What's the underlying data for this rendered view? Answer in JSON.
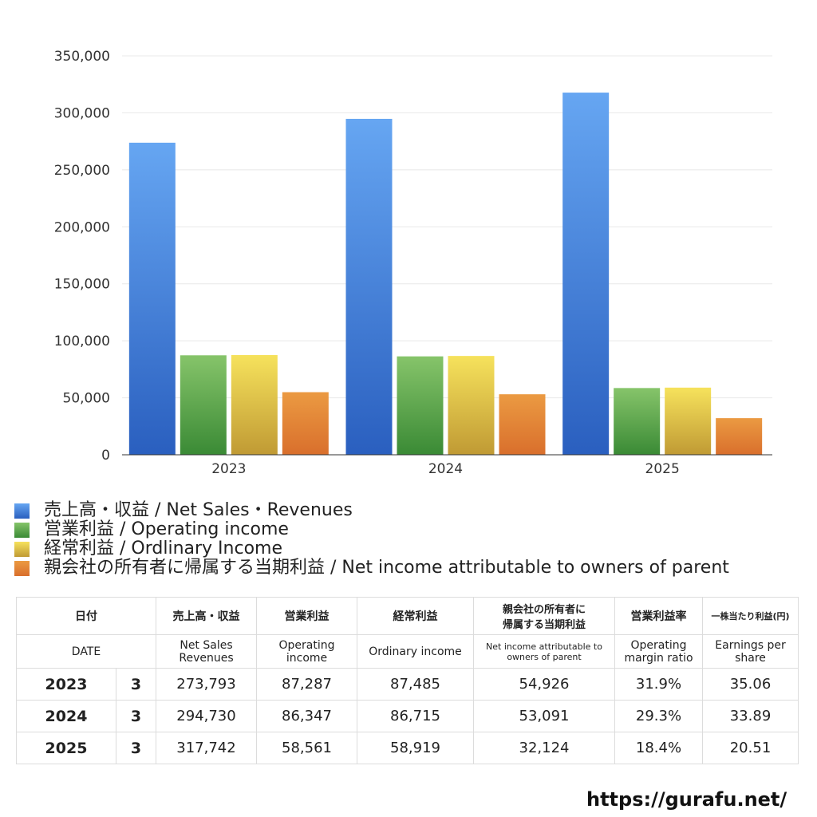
{
  "chart_data": {
    "type": "bar",
    "categories": [
      "2023",
      "2024",
      "2025"
    ],
    "ylim": [
      0,
      350000
    ],
    "yticks": [
      "0",
      "50,000",
      "100,000",
      "150,000",
      "200,000",
      "250,000",
      "300,000",
      "350,000"
    ],
    "grid": true,
    "series": [
      {
        "name": "売上高・収益 / Net Sales・Revenues",
        "values": [
          273793,
          294730,
          317742
        ],
        "color_top": "#66a6f2",
        "color_bottom": "#2a5fbf"
      },
      {
        "name": "営業利益 / Operating income",
        "values": [
          87287,
          86347,
          58561
        ],
        "color_top": "#86c46a",
        "color_bottom": "#3a8a35"
      },
      {
        "name": "経常利益 / Ordlinary Income",
        "values": [
          87485,
          86715,
          58919
        ],
        "color_top": "#f6e25c",
        "color_bottom": "#c09a34"
      },
      {
        "name": "親会社の所有者に帰属する当期利益 / Net income attributable to owners of parent",
        "values": [
          54926,
          53091,
          32124
        ],
        "color_top": "#eb9a42",
        "color_bottom": "#d96f2c"
      }
    ]
  },
  "table": {
    "header_jp": [
      "日付",
      "売上高・収益",
      "営業利益",
      "経常利益",
      "親会社の所有者に\n帰属する当期利益",
      "営業利益率",
      "一株当たり利益(円)"
    ],
    "header_en": [
      "DATE",
      "Net Sales\nRevenues",
      "Operating\nincome",
      "Ordinary income",
      "Net income attributable to\nowners of parent",
      "Operating\nmargin ratio",
      "Earnings per\nshare"
    ],
    "rows": [
      {
        "year": "2023",
        "month": "3",
        "sales": "273,793",
        "op": "87,287",
        "ord": "87,485",
        "net": "54,926",
        "margin": "31.9%",
        "eps": "35.06"
      },
      {
        "year": "2024",
        "month": "3",
        "sales": "294,730",
        "op": "86,347",
        "ord": "86,715",
        "net": "53,091",
        "margin": "29.3%",
        "eps": "33.89"
      },
      {
        "year": "2025",
        "month": "3",
        "sales": "317,742",
        "op": "58,561",
        "ord": "58,919",
        "net": "32,124",
        "margin": "18.4%",
        "eps": "20.51"
      }
    ]
  },
  "footer": {
    "url": "https://gurafu.net/"
  }
}
